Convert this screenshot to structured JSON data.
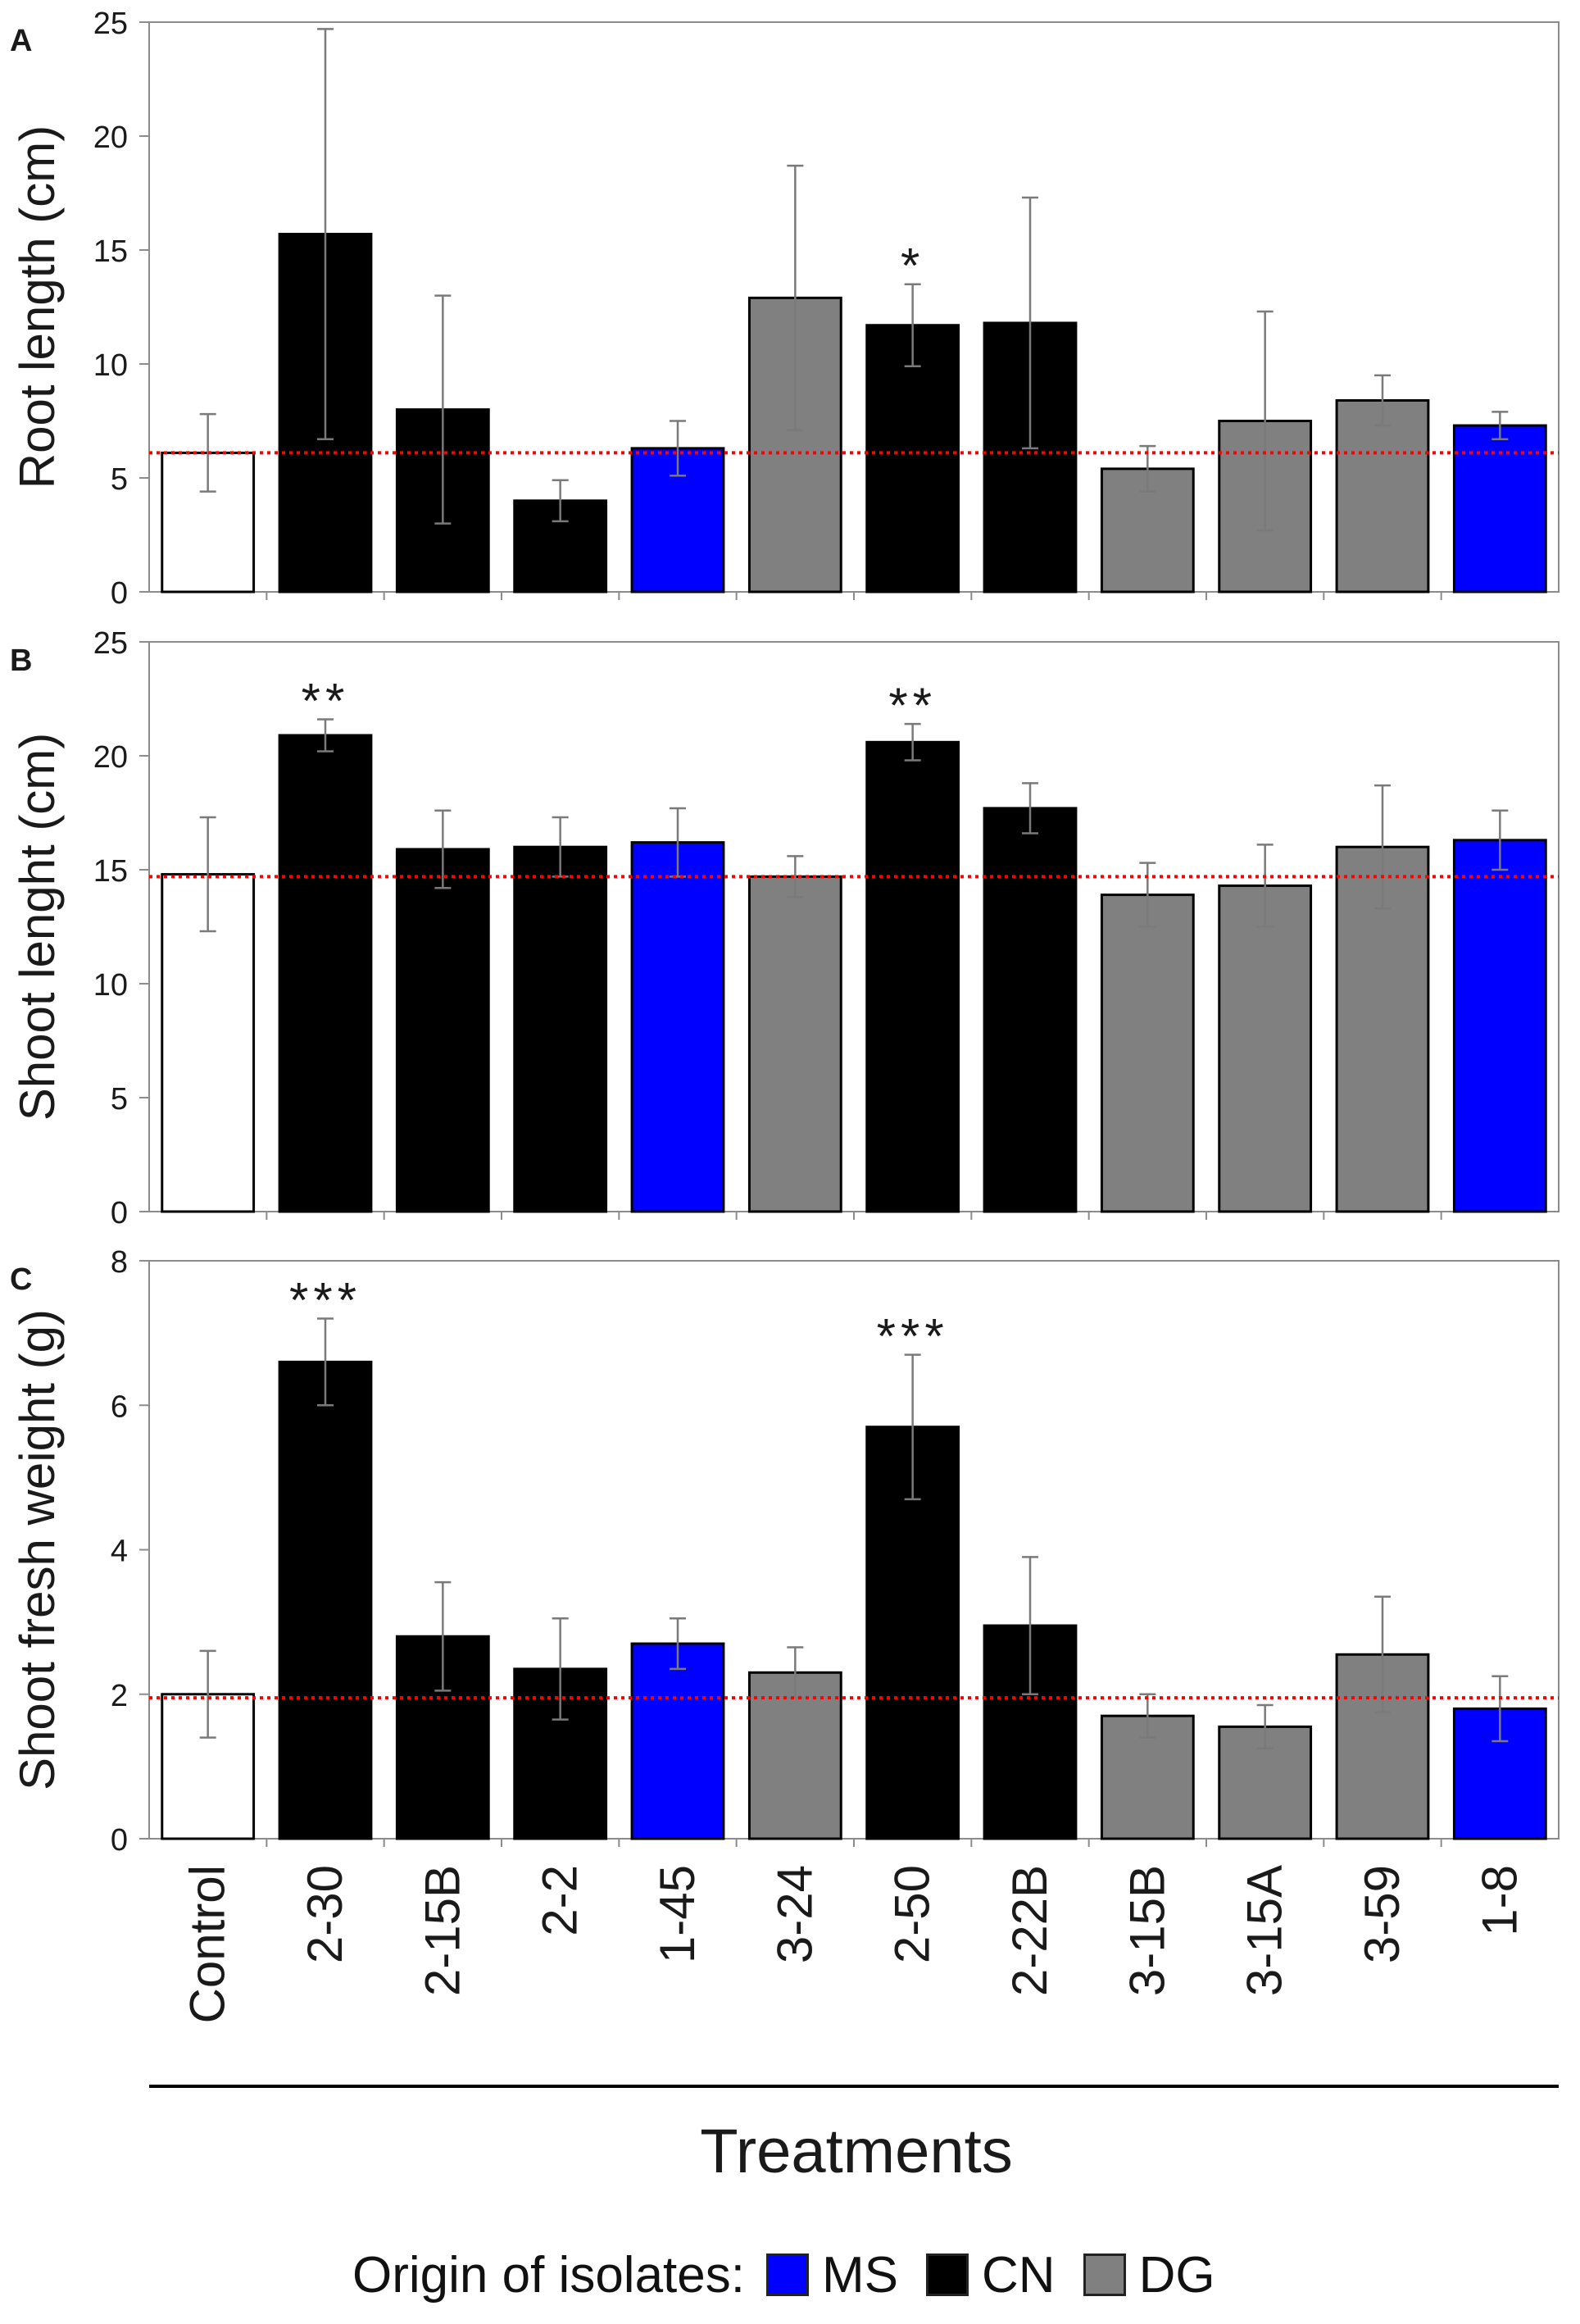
{
  "colors": {
    "MS": "#0000ff",
    "CN": "#000000",
    "DG": "#808080",
    "Control": "#ffffff",
    "reference": "#ff0000"
  },
  "categories": [
    "Control",
    "2-30",
    "2-15B",
    "2-2",
    "1-45",
    "3-24",
    "2-50",
    "2-22B",
    "3-15B",
    "3-15A",
    "3-59",
    "1-8"
  ],
  "origins": [
    "Control",
    "CN",
    "CN",
    "CN",
    "MS",
    "DG",
    "CN",
    "CN",
    "DG",
    "DG",
    "DG",
    "MS"
  ],
  "xlabel": "Treatments",
  "legend": {
    "label": "Origin of isolates:",
    "items": [
      {
        "name": "MS",
        "color": "#0000ff"
      },
      {
        "name": "CN",
        "color": "#000000"
      },
      {
        "name": "DG",
        "color": "#808080"
      }
    ]
  },
  "chart_data": [
    {
      "type": "bar",
      "panel": "A",
      "ylabel": "Root length (cm)",
      "ylim": [
        0,
        25
      ],
      "yticks": [
        0,
        5,
        10,
        15,
        20,
        25
      ],
      "categories": [
        "Control",
        "2-30",
        "2-15B",
        "2-2",
        "1-45",
        "3-24",
        "2-50",
        "2-22B",
        "3-15B",
        "3-15A",
        "3-59",
        "1-8"
      ],
      "values": [
        6.1,
        15.7,
        8.0,
        4.0,
        6.3,
        12.9,
        11.7,
        11.8,
        5.4,
        7.5,
        8.4,
        7.3
      ],
      "errors": [
        1.7,
        9.0,
        5.0,
        0.9,
        1.2,
        5.8,
        1.8,
        5.5,
        1.0,
        4.8,
        1.1,
        0.6
      ],
      "reference": 6.1,
      "annotations": [
        {
          "category": "2-50",
          "text": "*"
        }
      ]
    },
    {
      "type": "bar",
      "panel": "B",
      "ylabel": "Shoot lenght (cm)",
      "ylim": [
        0,
        25
      ],
      "yticks": [
        0,
        5,
        10,
        15,
        20,
        25
      ],
      "categories": [
        "Control",
        "2-30",
        "2-15B",
        "2-2",
        "1-45",
        "3-24",
        "2-50",
        "2-22B",
        "3-15B",
        "3-15A",
        "3-59",
        "1-8"
      ],
      "values": [
        14.8,
        20.9,
        15.9,
        16.0,
        16.2,
        14.7,
        20.6,
        17.7,
        13.9,
        14.3,
        16.0,
        16.3
      ],
      "errors": [
        2.5,
        0.7,
        1.7,
        1.3,
        1.5,
        0.9,
        0.8,
        1.1,
        1.4,
        1.8,
        2.7,
        1.3
      ],
      "reference": 14.7,
      "annotations": [
        {
          "category": "2-30",
          "text": "**"
        },
        {
          "category": "2-50",
          "text": "**"
        }
      ]
    },
    {
      "type": "bar",
      "panel": "C",
      "ylabel": "Shoot fresh weight (g)",
      "ylim": [
        0,
        8
      ],
      "yticks": [
        0,
        2,
        4,
        6,
        8
      ],
      "categories": [
        "Control",
        "2-30",
        "2-15B",
        "2-2",
        "1-45",
        "3-24",
        "2-50",
        "2-22B",
        "3-15B",
        "3-15A",
        "3-59",
        "1-8"
      ],
      "values": [
        2.0,
        6.6,
        2.8,
        2.35,
        2.7,
        2.3,
        5.7,
        2.95,
        1.7,
        1.55,
        2.55,
        1.8
      ],
      "errors": [
        0.6,
        0.6,
        0.75,
        0.7,
        0.35,
        0.35,
        1.0,
        0.95,
        0.3,
        0.3,
        0.8,
        0.45
      ],
      "reference": 1.95,
      "annotations": [
        {
          "category": "2-30",
          "text": "***"
        },
        {
          "category": "2-50",
          "text": "***"
        }
      ]
    }
  ]
}
